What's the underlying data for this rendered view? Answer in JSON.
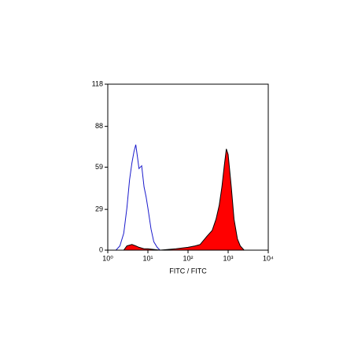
{
  "chart_data": {
    "type": "histogram-overlay",
    "x_label": "FITC / FITC",
    "xscale": "log",
    "xlim": [
      1,
      10000
    ],
    "xticks": [
      {
        "value": 1,
        "label": "10⁰"
      },
      {
        "value": 10,
        "label": "10¹"
      },
      {
        "value": 100,
        "label": "10²"
      },
      {
        "value": 1000,
        "label": "10³"
      },
      {
        "value": 10000,
        "label": "10⁴"
      }
    ],
    "ylim": [
      0,
      118
    ],
    "yticks": [
      0,
      29,
      59,
      88,
      118
    ],
    "series": [
      {
        "color": "#1a1acc",
        "fill": false,
        "x": [
          1.6,
          2,
          2.5,
          3,
          3.5,
          4,
          4.5,
          5,
          5.5,
          6,
          7,
          8,
          9,
          10,
          12,
          14,
          17,
          20
        ],
        "values": [
          0,
          3,
          12,
          30,
          50,
          62,
          70,
          75,
          66,
          58,
          60,
          45,
          38,
          30,
          15,
          6,
          2,
          0
        ]
      },
      {
        "color": "#ff0000",
        "fill": true,
        "x": [
          1,
          2.5,
          3,
          4,
          5,
          6,
          8,
          10,
          20,
          50,
          100,
          150,
          200,
          300,
          400,
          500,
          600,
          700,
          800,
          900,
          1000,
          1200,
          1400,
          1700,
          2000,
          2500,
          10000
        ],
        "values": [
          0,
          0,
          3,
          4,
          3,
          2,
          1,
          1,
          0,
          1,
          2,
          3,
          4,
          10,
          14,
          22,
          32,
          45,
          60,
          72,
          68,
          45,
          22,
          8,
          3,
          0,
          0
        ]
      }
    ]
  }
}
